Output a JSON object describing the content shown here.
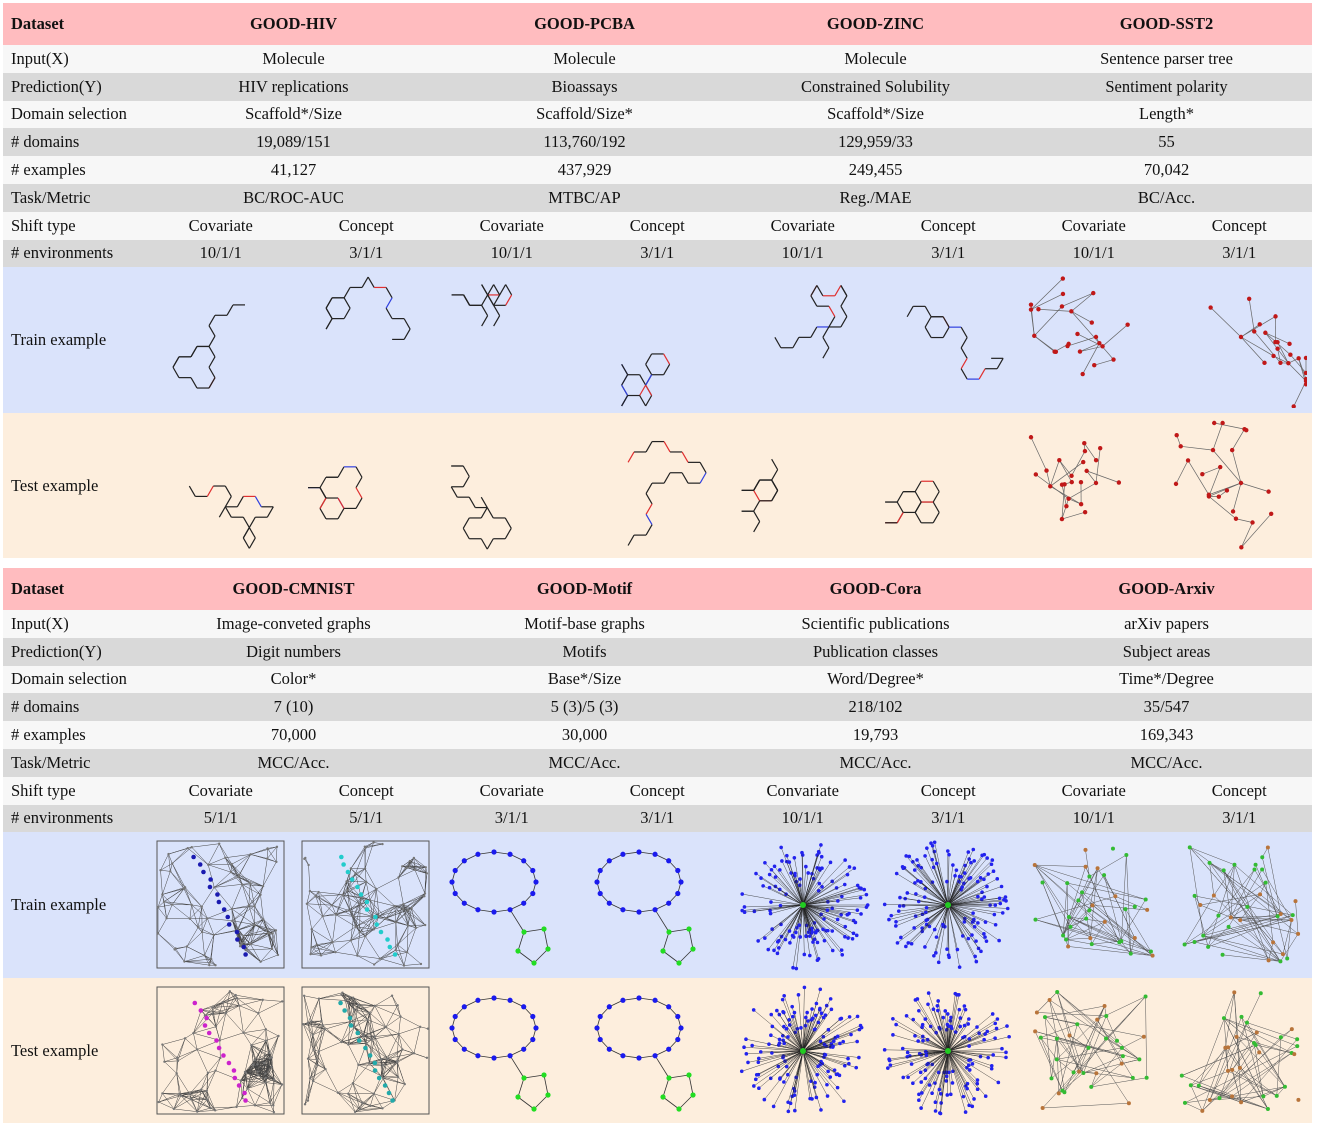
{
  "tables": [
    {
      "header": [
        "Dataset",
        "GOOD-HIV",
        "GOOD-PCBA",
        "GOOD-ZINC",
        "GOOD-SST2"
      ],
      "rows": [
        {
          "label": "Input(X)",
          "cells": [
            "Molecule",
            "Molecule",
            "Molecule",
            "Sentence parser tree"
          ]
        },
        {
          "label": "Prediction(Y)",
          "cells": [
            "HIV replications",
            "Bioassays",
            "Constrained Solubility",
            "Sentiment polarity"
          ]
        },
        {
          "label": "Domain selection",
          "cells": [
            "Scaffold*/Size",
            "Scaffold/Size*",
            "Scaffold*/Size",
            "Length*"
          ]
        },
        {
          "label": "# domains",
          "cells": [
            "19,089/151",
            "113,760/192",
            "129,959/33",
            "55"
          ]
        },
        {
          "label": "# examples",
          "cells": [
            "41,127",
            "437,929",
            "249,455",
            "70,042"
          ]
        },
        {
          "label": "Task/Metric",
          "cells": [
            "BC/ROC-AUC",
            "MTBC/AP",
            "Reg./MAE",
            "BC/Acc."
          ]
        }
      ],
      "split_rows": [
        {
          "label": "Shift type",
          "cells": [
            [
              "Covariate",
              "Concept"
            ],
            [
              "Covariate",
              "Concept"
            ],
            [
              "Covariate",
              "Concept"
            ],
            [
              "Covariate",
              "Concept"
            ]
          ]
        },
        {
          "label": "# environments",
          "cells": [
            [
              "10/1/1",
              "3/1/1"
            ],
            [
              "10/1/1",
              "3/1/1"
            ],
            [
              "10/1/1",
              "3/1/1"
            ],
            [
              "10/1/1",
              "3/1/1"
            ]
          ]
        }
      ],
      "example_rows": [
        {
          "label": "Train example"
        },
        {
          "label": "Test example"
        }
      ]
    },
    {
      "header": [
        "Dataset",
        "GOOD-CMNIST",
        "GOOD-Motif",
        "GOOD-Cora",
        "GOOD-Arxiv"
      ],
      "rows": [
        {
          "label": "Input(X)",
          "cells": [
            "Image-conveted graphs",
            "Motif-base graphs",
            "Scientific publications",
            "arXiv papers"
          ]
        },
        {
          "label": "Prediction(Y)",
          "cells": [
            "Digit numbers",
            "Motifs",
            "Publication classes",
            "Subject areas"
          ]
        },
        {
          "label": "Domain selection",
          "cells": [
            "Color*",
            "Base*/Size",
            "Word/Degree*",
            "Time*/Degree"
          ]
        },
        {
          "label": "# domains",
          "cells": [
            "7 (10)",
            "5 (3)/5 (3)",
            "218/102",
            "35/547"
          ]
        },
        {
          "label": "# examples",
          "cells": [
            "70,000",
            "30,000",
            "19,793",
            "169,343"
          ]
        },
        {
          "label": "Task/Metric",
          "cells": [
            "MCC/Acc.",
            "MCC/Acc.",
            "MCC/Acc.",
            "MCC/Acc."
          ]
        }
      ],
      "split_rows": [
        {
          "label": "Shift type",
          "cells": [
            [
              "Covariate",
              "Concept"
            ],
            [
              "Covariate",
              "Concept"
            ],
            [
              "Convariate",
              "Concept"
            ],
            [
              "Covariate",
              "Concept"
            ]
          ]
        },
        {
          "label": "# environments",
          "cells": [
            [
              "5/1/1",
              "5/1/1"
            ],
            [
              "3/1/1",
              "3/1/1"
            ],
            [
              "10/1/1",
              "3/1/1"
            ],
            [
              "10/1/1",
              "3/1/1"
            ]
          ]
        }
      ],
      "example_rows": [
        {
          "label": "Train example"
        },
        {
          "label": "Test example"
        }
      ]
    }
  ]
}
